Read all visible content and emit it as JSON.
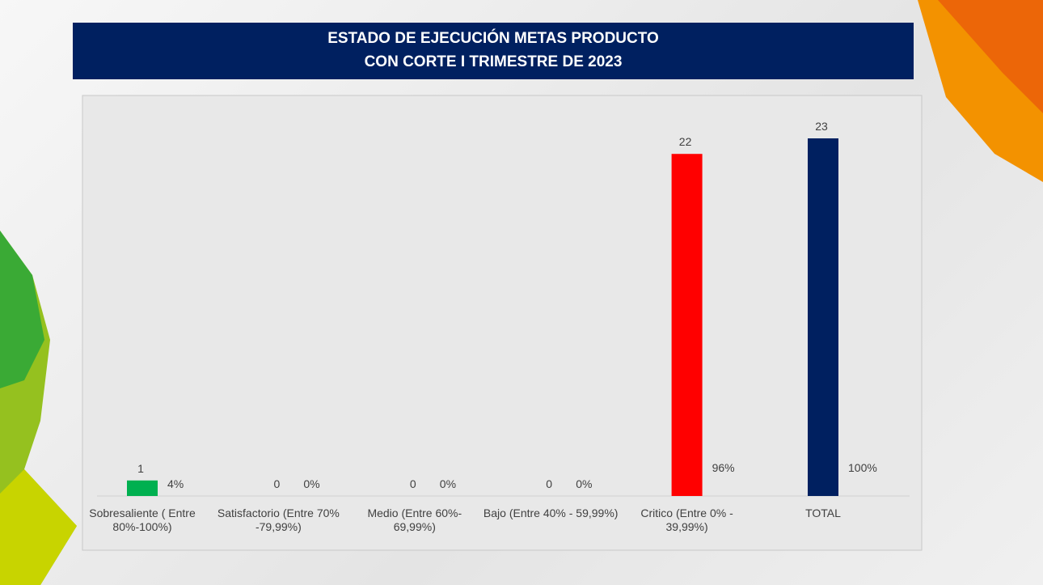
{
  "chart_data": {
    "type": "bar",
    "title": [
      "ESTADO DE EJECUCIÓN METAS PRODUCTO",
      "CON CORTE I TRIMESTRE DE 2023"
    ],
    "categories": [
      "Sobresaliente ( Entre 80%-100%)",
      "Satisfactorio (Entre 70% -79,99%)",
      "Medio (Entre 60%- 69,99%)",
      "Bajo (Entre 40% - 59,99%)",
      "Critico (Entre 0% - 39,99%)",
      "TOTAL"
    ],
    "values": [
      1,
      0,
      0,
      0,
      22,
      23
    ],
    "colors": [
      "#00b050",
      null,
      null,
      null,
      "#ff0000",
      "#002060"
    ],
    "shares": {
      "values": [
        4,
        0,
        0,
        0,
        96,
        100
      ],
      "value_labels": [
        "4%",
        "0%",
        "0%",
        "0%",
        "96%",
        "100%"
      ]
    }
  }
}
